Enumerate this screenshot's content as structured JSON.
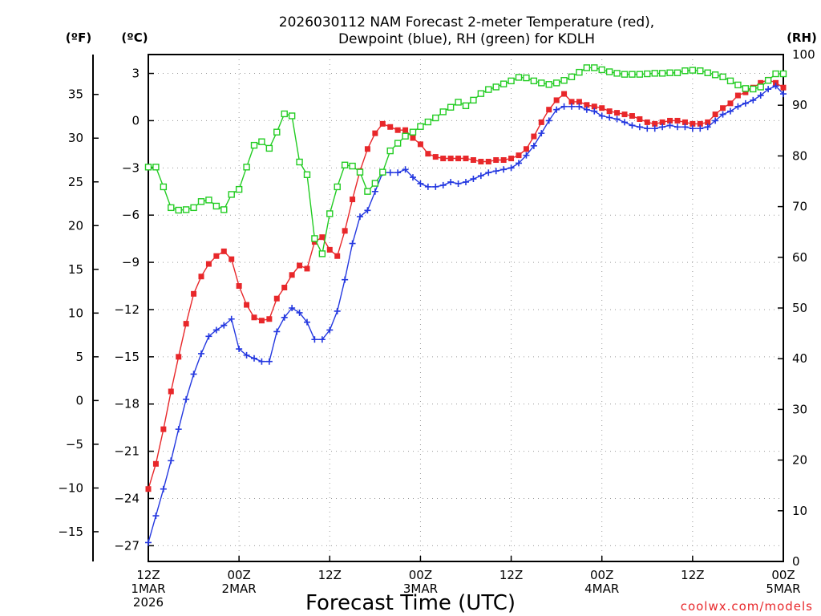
{
  "chart_data": {
    "type": "line",
    "title": [
      "2026030112 NAM Forecast 2-meter Temperature (red),",
      "Dewpoint (blue), RH (green) for KDLH"
    ],
    "xlabel": "Forecast Time (UTC)",
    "credit": "coolwx.com/models",
    "units": {
      "fahrenheit": "(ºF)",
      "celsius": "(ºC)",
      "rh": "(RH)"
    },
    "x_range_hours": [
      0,
      84
    ],
    "x_ticks": [
      {
        "hour": 0,
        "lines": [
          "12Z",
          "1MAR",
          "2026"
        ]
      },
      {
        "hour": 12,
        "lines": [
          "00Z",
          "2MAR"
        ]
      },
      {
        "hour": 24,
        "lines": [
          "12Z"
        ]
      },
      {
        "hour": 36,
        "lines": [
          "00Z",
          "3MAR"
        ]
      },
      {
        "hour": 48,
        "lines": [
          "12Z"
        ]
      },
      {
        "hour": 60,
        "lines": [
          "00Z",
          "4MAR"
        ]
      },
      {
        "hour": 72,
        "lines": [
          "12Z"
        ]
      },
      {
        "hour": 84,
        "lines": [
          "00Z",
          "5MAR"
        ]
      }
    ],
    "celsius_axis": {
      "range": [
        -28,
        4.2
      ],
      "ticks": [
        3,
        0,
        -3,
        -6,
        -9,
        -12,
        -15,
        -18,
        -21,
        -24,
        -27
      ]
    },
    "fahrenheit_axis": {
      "ticks": [
        35,
        30,
        25,
        20,
        15,
        10,
        5,
        0,
        -5,
        -10,
        -15
      ],
      "tick_labels": [
        "35",
        "30",
        "25",
        "20",
        "15",
        "10",
        "5",
        "0",
        "−5",
        "−10",
        "−15"
      ]
    },
    "rh_axis": {
      "range": [
        0,
        100
      ],
      "ticks": [
        0,
        10,
        20,
        30,
        40,
        50,
        60,
        70,
        80,
        90,
        100
      ]
    },
    "series": [
      {
        "name": "Temperature",
        "unit": "C",
        "color": "#e8272a",
        "marker": "filled-square",
        "values": [
          [
            0,
            -23.4
          ],
          [
            1,
            -21.8
          ],
          [
            2,
            -19.6
          ],
          [
            3,
            -17.2
          ],
          [
            4,
            -15.0
          ],
          [
            5,
            -12.9
          ],
          [
            6,
            -11.0
          ],
          [
            7,
            -9.9
          ],
          [
            8,
            -9.1
          ],
          [
            9,
            -8.6
          ],
          [
            10,
            -8.3
          ],
          [
            11,
            -8.8
          ],
          [
            12,
            -10.5
          ],
          [
            13,
            -11.7
          ],
          [
            14,
            -12.5
          ],
          [
            15,
            -12.7
          ],
          [
            16,
            -12.6
          ],
          [
            17,
            -11.3
          ],
          [
            18,
            -10.6
          ],
          [
            19,
            -9.8
          ],
          [
            20,
            -9.2
          ],
          [
            21,
            -9.4
          ],
          [
            22,
            -7.7
          ],
          [
            23,
            -7.4
          ],
          [
            24,
            -8.2
          ],
          [
            25,
            -8.6
          ],
          [
            26,
            -7.0
          ],
          [
            27,
            -5.0
          ],
          [
            28,
            -3.2
          ],
          [
            29,
            -1.8
          ],
          [
            30,
            -0.8
          ],
          [
            31,
            -0.2
          ],
          [
            32,
            -0.4
          ],
          [
            33,
            -0.6
          ],
          [
            34,
            -0.6
          ],
          [
            35,
            -1.1
          ],
          [
            36,
            -1.5
          ],
          [
            37,
            -2.1
          ],
          [
            38,
            -2.3
          ],
          [
            39,
            -2.4
          ],
          [
            40,
            -2.4
          ],
          [
            41,
            -2.4
          ],
          [
            42,
            -2.4
          ],
          [
            43,
            -2.5
          ],
          [
            44,
            -2.6
          ],
          [
            45,
            -2.6
          ],
          [
            46,
            -2.5
          ],
          [
            47,
            -2.5
          ],
          [
            48,
            -2.4
          ],
          [
            49,
            -2.2
          ],
          [
            50,
            -1.8
          ],
          [
            51,
            -1.0
          ],
          [
            52,
            -0.1
          ],
          [
            53,
            0.7
          ],
          [
            54,
            1.3
          ],
          [
            55,
            1.7
          ],
          [
            56,
            1.2
          ],
          [
            57,
            1.2
          ],
          [
            58,
            1.0
          ],
          [
            59,
            0.9
          ],
          [
            60,
            0.8
          ],
          [
            61,
            0.6
          ],
          [
            62,
            0.5
          ],
          [
            63,
            0.4
          ],
          [
            64,
            0.3
          ],
          [
            65,
            0.1
          ],
          [
            66,
            -0.1
          ],
          [
            67,
            -0.2
          ],
          [
            68,
            -0.1
          ],
          [
            69,
            0.0
          ],
          [
            70,
            0.0
          ],
          [
            71,
            -0.1
          ],
          [
            72,
            -0.2
          ],
          [
            73,
            -0.2
          ],
          [
            74,
            -0.1
          ],
          [
            75,
            0.4
          ],
          [
            76,
            0.8
          ],
          [
            77,
            1.1
          ],
          [
            78,
            1.6
          ],
          [
            79,
            1.8
          ],
          [
            80,
            2.1
          ],
          [
            81,
            2.4
          ],
          [
            82,
            2.6
          ],
          [
            83,
            2.4
          ],
          [
            84,
            2.1
          ]
        ]
      },
      {
        "name": "Dewpoint",
        "unit": "C",
        "color": "#2438e0",
        "marker": "plus",
        "values": [
          [
            0,
            -26.8
          ],
          [
            1,
            -25.1
          ],
          [
            2,
            -23.4
          ],
          [
            3,
            -21.6
          ],
          [
            4,
            -19.6
          ],
          [
            5,
            -17.7
          ],
          [
            6,
            -16.1
          ],
          [
            7,
            -14.8
          ],
          [
            8,
            -13.7
          ],
          [
            9,
            -13.3
          ],
          [
            10,
            -13.0
          ],
          [
            11,
            -12.6
          ],
          [
            12,
            -14.5
          ],
          [
            13,
            -14.9
          ],
          [
            14,
            -15.1
          ],
          [
            15,
            -15.3
          ],
          [
            16,
            -15.3
          ],
          [
            17,
            -13.4
          ],
          [
            18,
            -12.5
          ],
          [
            19,
            -11.9
          ],
          [
            20,
            -12.2
          ],
          [
            21,
            -12.8
          ],
          [
            22,
            -13.9
          ],
          [
            23,
            -13.9
          ],
          [
            24,
            -13.3
          ],
          [
            25,
            -12.1
          ],
          [
            26,
            -10.1
          ],
          [
            27,
            -7.8
          ],
          [
            28,
            -6.1
          ],
          [
            29,
            -5.7
          ],
          [
            30,
            -4.5
          ],
          [
            31,
            -3.3
          ],
          [
            32,
            -3.3
          ],
          [
            33,
            -3.3
          ],
          [
            34,
            -3.1
          ],
          [
            35,
            -3.6
          ],
          [
            36,
            -4.0
          ],
          [
            37,
            -4.2
          ],
          [
            38,
            -4.2
          ],
          [
            39,
            -4.1
          ],
          [
            40,
            -3.9
          ],
          [
            41,
            -4.0
          ],
          [
            42,
            -3.9
          ],
          [
            43,
            -3.7
          ],
          [
            44,
            -3.5
          ],
          [
            45,
            -3.3
          ],
          [
            46,
            -3.2
          ],
          [
            47,
            -3.1
          ],
          [
            48,
            -3.0
          ],
          [
            49,
            -2.7
          ],
          [
            50,
            -2.2
          ],
          [
            51,
            -1.6
          ],
          [
            52,
            -0.8
          ],
          [
            53,
            0.0
          ],
          [
            54,
            0.7
          ],
          [
            55,
            0.9
          ],
          [
            56,
            0.9
          ],
          [
            57,
            0.9
          ],
          [
            58,
            0.7
          ],
          [
            59,
            0.6
          ],
          [
            60,
            0.3
          ],
          [
            61,
            0.2
          ],
          [
            62,
            0.1
          ],
          [
            63,
            -0.1
          ],
          [
            64,
            -0.3
          ],
          [
            65,
            -0.4
          ],
          [
            66,
            -0.5
          ],
          [
            67,
            -0.5
          ],
          [
            68,
            -0.4
          ],
          [
            69,
            -0.3
          ],
          [
            70,
            -0.4
          ],
          [
            71,
            -0.4
          ],
          [
            72,
            -0.5
          ],
          [
            73,
            -0.5
          ],
          [
            74,
            -0.4
          ],
          [
            75,
            0.0
          ],
          [
            76,
            0.4
          ],
          [
            77,
            0.6
          ],
          [
            78,
            0.9
          ],
          [
            79,
            1.1
          ],
          [
            80,
            1.3
          ],
          [
            81,
            1.6
          ],
          [
            82,
            2.0
          ],
          [
            83,
            2.2
          ],
          [
            84,
            1.7
          ]
        ]
      },
      {
        "name": "Relative Humidity",
        "unit": "%",
        "color": "#22cc22",
        "marker": "open-square",
        "values": [
          [
            0,
            77.8
          ],
          [
            1,
            77.8
          ],
          [
            2,
            73.9
          ],
          [
            3,
            69.8
          ],
          [
            4,
            69.3
          ],
          [
            5,
            69.4
          ],
          [
            6,
            69.8
          ],
          [
            7,
            71.0
          ],
          [
            8,
            71.3
          ],
          [
            9,
            70.1
          ],
          [
            10,
            69.4
          ],
          [
            11,
            72.4
          ],
          [
            12,
            73.4
          ],
          [
            13,
            77.8
          ],
          [
            14,
            82.1
          ],
          [
            15,
            82.8
          ],
          [
            16,
            81.5
          ],
          [
            17,
            84.7
          ],
          [
            18,
            88.3
          ],
          [
            19,
            87.9
          ],
          [
            20,
            78.8
          ],
          [
            21,
            76.3
          ],
          [
            22,
            63.7
          ],
          [
            23,
            60.7
          ],
          [
            24,
            68.6
          ],
          [
            25,
            73.9
          ],
          [
            26,
            78.2
          ],
          [
            27,
            78.0
          ],
          [
            28,
            76.8
          ],
          [
            29,
            73.0
          ],
          [
            30,
            74.6
          ],
          [
            31,
            76.8
          ],
          [
            32,
            81.0
          ],
          [
            33,
            82.5
          ],
          [
            34,
            83.9
          ],
          [
            35,
            84.7
          ],
          [
            36,
            85.8
          ],
          [
            37,
            86.7
          ],
          [
            38,
            87.5
          ],
          [
            39,
            88.7
          ],
          [
            40,
            89.6
          ],
          [
            41,
            90.6
          ],
          [
            42,
            89.9
          ],
          [
            43,
            91.0
          ],
          [
            44,
            92.3
          ],
          [
            45,
            93.1
          ],
          [
            46,
            93.6
          ],
          [
            47,
            94.2
          ],
          [
            48,
            94.8
          ],
          [
            49,
            95.5
          ],
          [
            50,
            95.4
          ],
          [
            51,
            94.8
          ],
          [
            52,
            94.4
          ],
          [
            53,
            94.1
          ],
          [
            54,
            94.4
          ],
          [
            55,
            94.9
          ],
          [
            56,
            95.6
          ],
          [
            57,
            96.5
          ],
          [
            58,
            97.4
          ],
          [
            59,
            97.4
          ],
          [
            60,
            97.0
          ],
          [
            61,
            96.6
          ],
          [
            62,
            96.3
          ],
          [
            63,
            96.1
          ],
          [
            64,
            96.1
          ],
          [
            65,
            96.1
          ],
          [
            66,
            96.2
          ],
          [
            67,
            96.3
          ],
          [
            68,
            96.3
          ],
          [
            69,
            96.4
          ],
          [
            70,
            96.4
          ],
          [
            71,
            96.8
          ],
          [
            72,
            96.9
          ],
          [
            73,
            96.8
          ],
          [
            74,
            96.4
          ],
          [
            75,
            96.0
          ],
          [
            76,
            95.6
          ],
          [
            77,
            94.8
          ],
          [
            78,
            94.0
          ],
          [
            79,
            93.3
          ],
          [
            80,
            93.2
          ],
          [
            81,
            93.6
          ],
          [
            82,
            94.9
          ],
          [
            83,
            96.2
          ],
          [
            84,
            96.2
          ]
        ]
      }
    ]
  }
}
